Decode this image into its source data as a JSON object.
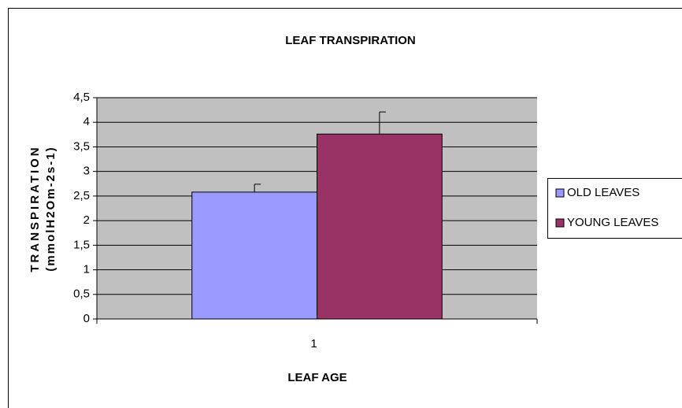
{
  "chart_data": {
    "type": "bar",
    "title": "LEAF TRANSPIRATION",
    "ylabel": [
      "TRANSPIRATION",
      "(mmolH2Om-2s-1)"
    ],
    "xlabel": "LEAF AGE",
    "categories": [
      "1"
    ],
    "series": [
      {
        "name": "OLD LEAVES",
        "color": "#9999ff",
        "values": [
          2.58
        ],
        "errors": [
          0.16
        ]
      },
      {
        "name": "YOUNG LEAVES",
        "color": "#993366",
        "values": [
          3.76
        ],
        "errors": [
          0.45
        ]
      }
    ],
    "ylim": [
      0,
      4.5
    ],
    "yticks": [
      0,
      {
        "value": 0.5,
        "label": "0,5"
      },
      1,
      {
        "value": 1.5,
        "label": "1,5"
      },
      2,
      {
        "value": 2.5,
        "label": "2,5"
      },
      3,
      {
        "value": 3.5,
        "label": "3,5"
      },
      4,
      {
        "value": 4.5,
        "label": "4,5"
      }
    ],
    "grid": true,
    "legend": "right"
  }
}
